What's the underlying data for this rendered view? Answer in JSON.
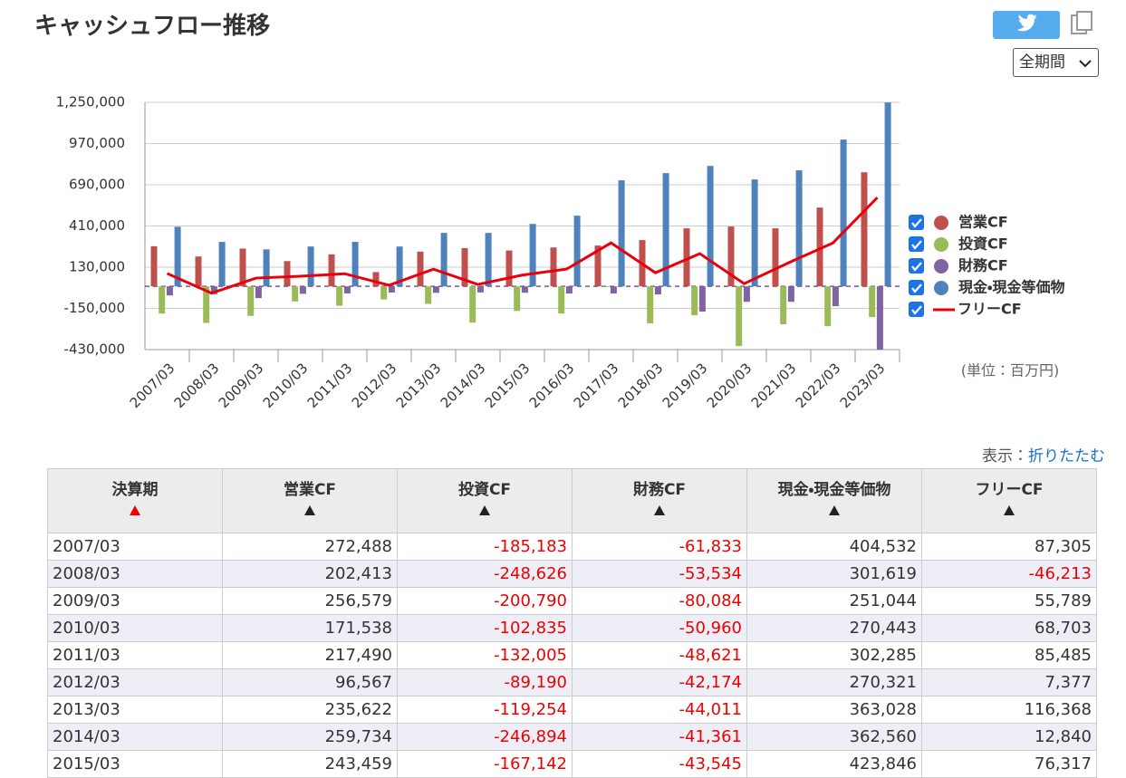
{
  "header": {
    "title": "キャッシュフロー推移",
    "range_select": "全期間"
  },
  "chart_data": {
    "type": "bar",
    "categories": [
      "2007/03",
      "2008/03",
      "2009/03",
      "2010/03",
      "2011/03",
      "2012/03",
      "2013/03",
      "2014/03",
      "2015/03",
      "2016/03",
      "2017/03",
      "2018/03",
      "2019/03",
      "2020/03",
      "2021/03",
      "2022/03",
      "2023/03"
    ],
    "series": [
      {
        "name": "営業CF",
        "color": "#c0504d",
        "type": "bar",
        "values": [
          272488,
          202413,
          256579,
          171538,
          217490,
          96567,
          235622,
          259734,
          243459,
          264000,
          277000,
          314000,
          394000,
          406000,
          394000,
          535000,
          775000
        ]
      },
      {
        "name": "投資CF",
        "color": "#9bbb59",
        "type": "bar",
        "values": [
          -185183,
          -248626,
          -200790,
          -102835,
          -132005,
          -89190,
          -119254,
          -246894,
          -167142,
          -185000,
          -5000,
          -252000,
          -197000,
          -406000,
          -258000,
          -271000,
          -209000
        ]
      },
      {
        "name": "財務CF",
        "color": "#8064a2",
        "type": "bar",
        "values": [
          -61833,
          -53534,
          -80084,
          -50960,
          -48621,
          -42174,
          -44011,
          -41361,
          -43545,
          -49000,
          -49000,
          -55000,
          -172000,
          -105000,
          -105000,
          -135000,
          -430000
        ]
      },
      {
        "name": "現金・現金等価物",
        "color": "#4f81bd",
        "type": "bar",
        "values": [
          404532,
          301619,
          251044,
          270443,
          302285,
          270321,
          363028,
          362560,
          423846,
          480000,
          720000,
          769000,
          818000,
          726000,
          788000,
          997000,
          1249000
        ]
      },
      {
        "name": "フリーCF",
        "color": "#e8000b",
        "type": "line",
        "values": [
          87305,
          -46213,
          55789,
          68703,
          85485,
          7377,
          116368,
          12840,
          76317,
          117000,
          295000,
          92000,
          222000,
          18000,
          160000,
          295000,
          603000
        ]
      }
    ],
    "ylim": [
      -430000,
      1250000
    ],
    "yticks": [
      {
        "value": -430000,
        "label": "-430,000"
      },
      {
        "value": -150000,
        "label": "-150,000"
      },
      {
        "value": 130000,
        "label": "130,000"
      },
      {
        "value": 410000,
        "label": "410,000"
      },
      {
        "value": 690000,
        "label": "690,000"
      },
      {
        "value": 970000,
        "label": "970,000"
      },
      {
        "value": 1250000,
        "label": "1,250,000"
      }
    ],
    "grid": true,
    "legend": "right",
    "unit_note": "(単位：百万円)"
  },
  "display": {
    "label": "表示：",
    "link": "折りたたむ"
  },
  "table": {
    "columns": [
      "決算期",
      "営業CF",
      "投資CF",
      "財務CF",
      "現金・現金等価物",
      "フリーCF"
    ],
    "rows": [
      [
        "2007/03",
        "272,488",
        "-185,183",
        "-61,833",
        "404,532",
        "87,305"
      ],
      [
        "2008/03",
        "202,413",
        "-248,626",
        "-53,534",
        "301,619",
        "-46,213"
      ],
      [
        "2009/03",
        "256,579",
        "-200,790",
        "-80,084",
        "251,044",
        "55,789"
      ],
      [
        "2010/03",
        "171,538",
        "-102,835",
        "-50,960",
        "270,443",
        "68,703"
      ],
      [
        "2011/03",
        "217,490",
        "-132,005",
        "-48,621",
        "302,285",
        "85,485"
      ],
      [
        "2012/03",
        "96,567",
        "-89,190",
        "-42,174",
        "270,321",
        "7,377"
      ],
      [
        "2013/03",
        "235,622",
        "-119,254",
        "-44,011",
        "363,028",
        "116,368"
      ],
      [
        "2014/03",
        "259,734",
        "-246,894",
        "-41,361",
        "362,560",
        "12,840"
      ],
      [
        "2015/03",
        "243,459",
        "-167,142",
        "-43,545",
        "423,846",
        "76,317"
      ]
    ]
  }
}
